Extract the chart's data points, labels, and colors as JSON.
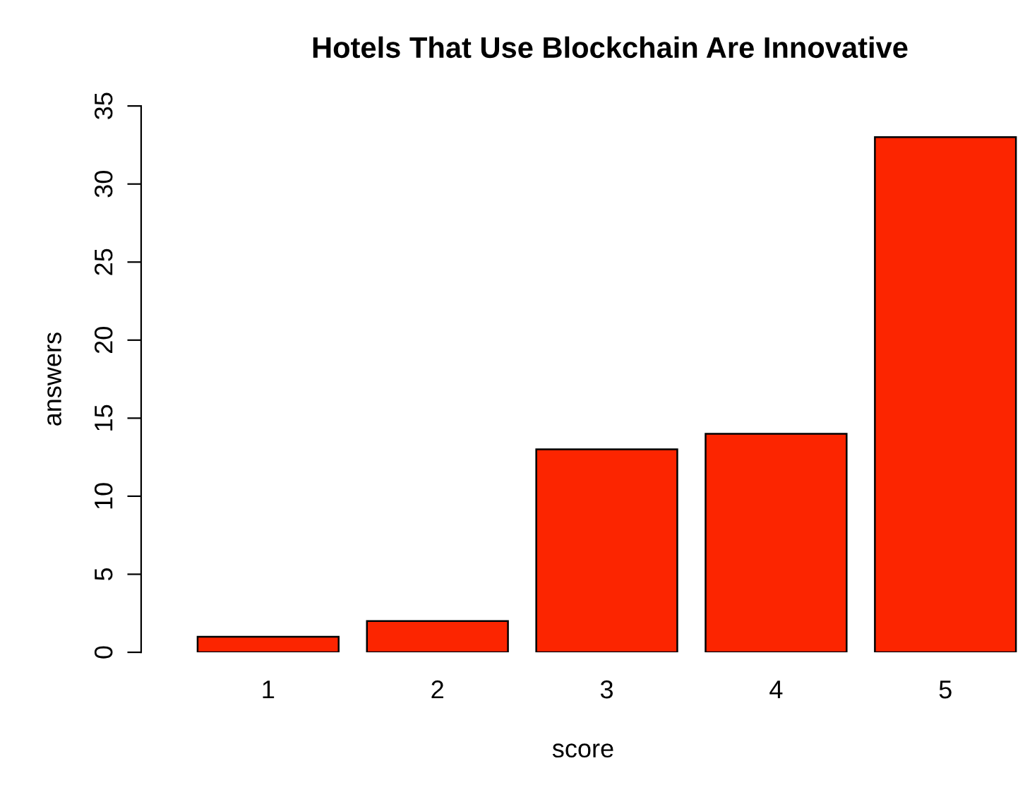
{
  "chart_data": {
    "type": "bar",
    "title": "Hotels That Use Blockchain Are Innovative",
    "xlabel": "score",
    "ylabel": "answers",
    "categories": [
      "1",
      "2",
      "3",
      "4",
      "5"
    ],
    "values": [
      1,
      2,
      13,
      14,
      33
    ],
    "color": "#fc2500",
    "ylim": [
      0,
      35
    ],
    "yticks": [
      0,
      5,
      10,
      15,
      20,
      25,
      30,
      35
    ],
    "grid": false,
    "legend": false
  }
}
